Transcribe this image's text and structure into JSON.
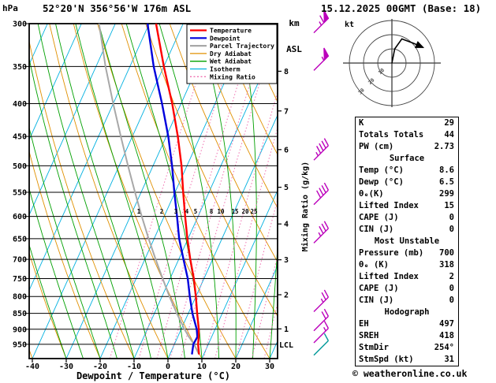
{
  "header": {
    "pressure_unit": "hPa",
    "station": "52°20'N 356°56'W 176m ASL",
    "altitude_unit_top": "km",
    "altitude_unit_bottom": "ASL",
    "datetime": "15.12.2025 00GMT (Base: 18)"
  },
  "legend": [
    {
      "key": "temperature",
      "label": "Temperature",
      "color": "#ff0000"
    },
    {
      "key": "dewpoint",
      "label": "Dewpoint",
      "color": "#0000dd"
    },
    {
      "key": "parcel",
      "label": "Parcel Trajectory",
      "color": "#a8a8a8"
    },
    {
      "key": "dry_adiabat",
      "label": "Dry Adiabat",
      "color": "#e09000"
    },
    {
      "key": "wet_adiabat",
      "label": "Wet Adiabat",
      "color": "#00a000"
    },
    {
      "key": "isotherm",
      "label": "Isotherm",
      "color": "#00b0e0"
    },
    {
      "key": "mixing_ratio",
      "label": "Mixing Ratio",
      "color": "#f070b0"
    }
  ],
  "axes": {
    "pressure_ticks": [
      300,
      350,
      400,
      450,
      500,
      550,
      600,
      650,
      700,
      750,
      800,
      850,
      900,
      950
    ],
    "temp_ticks": [
      -40,
      -30,
      -20,
      -10,
      0,
      10,
      20,
      30
    ],
    "km_ticks": [
      8,
      7,
      6,
      5,
      4,
      3,
      2,
      1
    ],
    "xlabel": "Dewpoint / Temperature (°C)",
    "mixing_ratio_axis_label": "Mixing Ratio (g/kg)",
    "lcl_label": "LCL"
  },
  "hodograph": {
    "unit_label": "kt",
    "ring_labels": [
      "10",
      "20",
      "30"
    ]
  },
  "table": {
    "top_rows": [
      {
        "label": "K",
        "value": "29"
      },
      {
        "label": "Totals Totals",
        "value": "44"
      },
      {
        "label": "PW (cm)",
        "value": "2.73"
      }
    ],
    "sections": [
      {
        "title": "Surface",
        "rows": [
          {
            "label": "Temp (°C)",
            "value": "8.6"
          },
          {
            "label": "Dewp (°C)",
            "value": "6.5"
          },
          {
            "label": "θₑ(K)",
            "value": "299"
          },
          {
            "label": "Lifted Index",
            "value": "15"
          },
          {
            "label": "CAPE (J)",
            "value": "0"
          },
          {
            "label": "CIN (J)",
            "value": "0"
          }
        ]
      },
      {
        "title": "Most Unstable",
        "rows": [
          {
            "label": "Pressure (mb)",
            "value": "700"
          },
          {
            "label": "θₑ (K)",
            "value": "318"
          },
          {
            "label": "Lifted Index",
            "value": "2"
          },
          {
            "label": "CAPE (J)",
            "value": "0"
          },
          {
            "label": "CIN (J)",
            "value": "0"
          }
        ]
      },
      {
        "title": "Hodograph",
        "rows": [
          {
            "label": "EH",
            "value": "497"
          },
          {
            "label": "SREH",
            "value": "418"
          },
          {
            "label": "StmDir",
            "value": "254°"
          },
          {
            "label": "StmSpd (kt)",
            "value": "31"
          }
        ]
      }
    ]
  },
  "footer": "© weatheronline.co.uk",
  "chart_data": {
    "type": "skew-t-log-p-sounding",
    "title": "52°20'N 356°56'W 176m ASL",
    "pressure_axis_hpa": [
      300,
      1000
    ],
    "temp_axis_c": [
      -40,
      35
    ],
    "profile": {
      "pressure_hpa": [
        985,
        950,
        925,
        900,
        850,
        800,
        750,
        700,
        650,
        600,
        550,
        500,
        450,
        400,
        350,
        300
      ],
      "temperature_c": [
        8.6,
        7.0,
        6.2,
        5.2,
        2.6,
        0.0,
        -3.0,
        -6.6,
        -10.2,
        -13.8,
        -17.6,
        -21.6,
        -26.6,
        -32.6,
        -40.0,
        -48.0
      ],
      "dewpoint_c": [
        6.5,
        5.6,
        5.8,
        4.6,
        1.2,
        -1.8,
        -4.8,
        -8.6,
        -12.6,
        -16.2,
        -20.2,
        -24.4,
        -29.4,
        -35.6,
        -43.0,
        -50.5
      ],
      "parcel_c": [
        8.6,
        5.8,
        3.3,
        1.0,
        -3.4,
        -7.8,
        -12.2,
        -16.8,
        -21.6,
        -26.6,
        -31.8,
        -37.4,
        -43.4,
        -50.0,
        -57.2,
        -64.8
      ]
    },
    "mixing_ratio_lines_g_per_kg": [
      1,
      2,
      3,
      4,
      5,
      8,
      10,
      15,
      20,
      25
    ],
    "wind_barbs": [
      {
        "pressure_hpa": 310,
        "speed_kt": 65,
        "color": "#bb00bb"
      },
      {
        "pressure_hpa": 355,
        "speed_kt": 55,
        "color": "#bb00bb"
      },
      {
        "pressure_hpa": 490,
        "speed_kt": 45,
        "color": "#bb00bb"
      },
      {
        "pressure_hpa": 575,
        "speed_kt": 40,
        "color": "#bb00bb"
      },
      {
        "pressure_hpa": 660,
        "speed_kt": 35,
        "color": "#bb00bb"
      },
      {
        "pressure_hpa": 845,
        "speed_kt": 25,
        "color": "#bb00bb"
      },
      {
        "pressure_hpa": 905,
        "speed_kt": 20,
        "color": "#bb00bb"
      },
      {
        "pressure_hpa": 945,
        "speed_kt": 15,
        "color": "#bb00bb"
      },
      {
        "pressure_hpa": 988,
        "speed_kt": 10,
        "color": "#009999"
      }
    ],
    "hodograph": {
      "ring_interval_kt": 10,
      "trace_uv_kt": [
        [
          0,
          0
        ],
        [
          2,
          10
        ],
        [
          7,
          17
        ],
        [
          15,
          14
        ],
        [
          22,
          11
        ]
      ],
      "storm_dir_deg": 254,
      "storm_speed_kt": 31
    }
  }
}
